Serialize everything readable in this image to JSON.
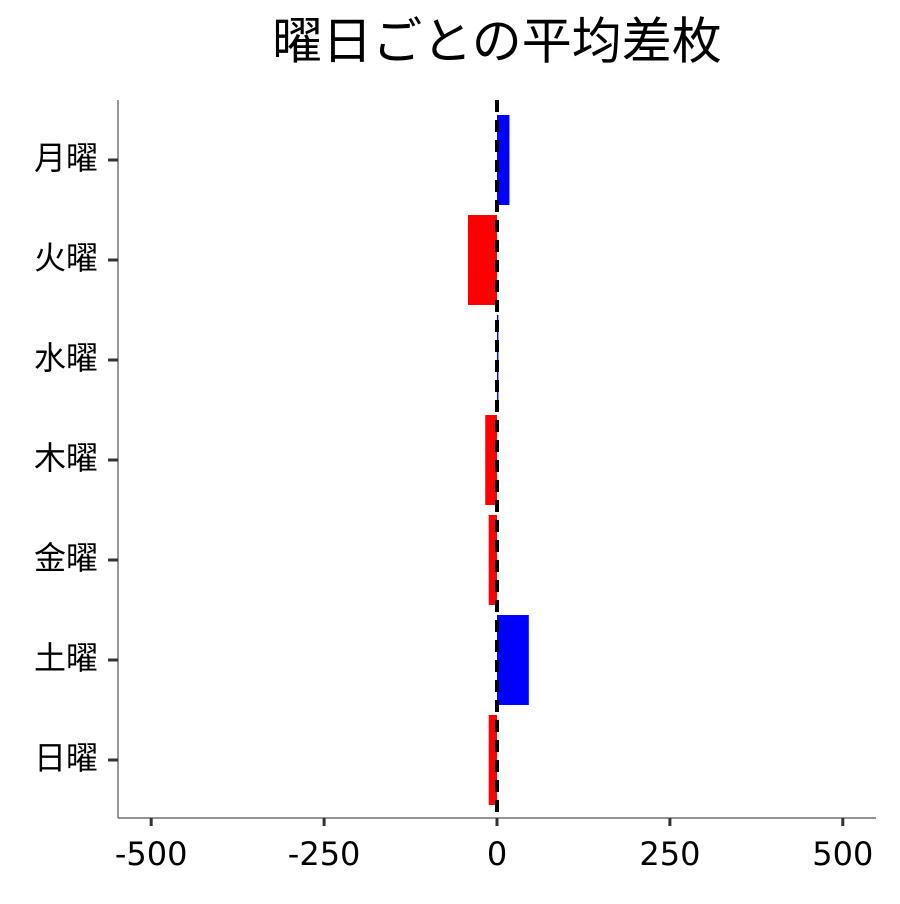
{
  "chart_data": {
    "type": "barh",
    "title": "曜日ごとの平均差枚",
    "categories": [
      "月曜",
      "火曜",
      "水曜",
      "木曜",
      "金曜",
      "土曜",
      "日曜"
    ],
    "values": [
      18,
      -42,
      2,
      -17,
      -12,
      46,
      -12
    ],
    "positive_color": "#0000ff",
    "negative_color": "#ff0000",
    "xlim": [
      -548,
      548
    ],
    "xticks": [
      -500,
      -250,
      0,
      250,
      500
    ],
    "reference_line": 0
  }
}
